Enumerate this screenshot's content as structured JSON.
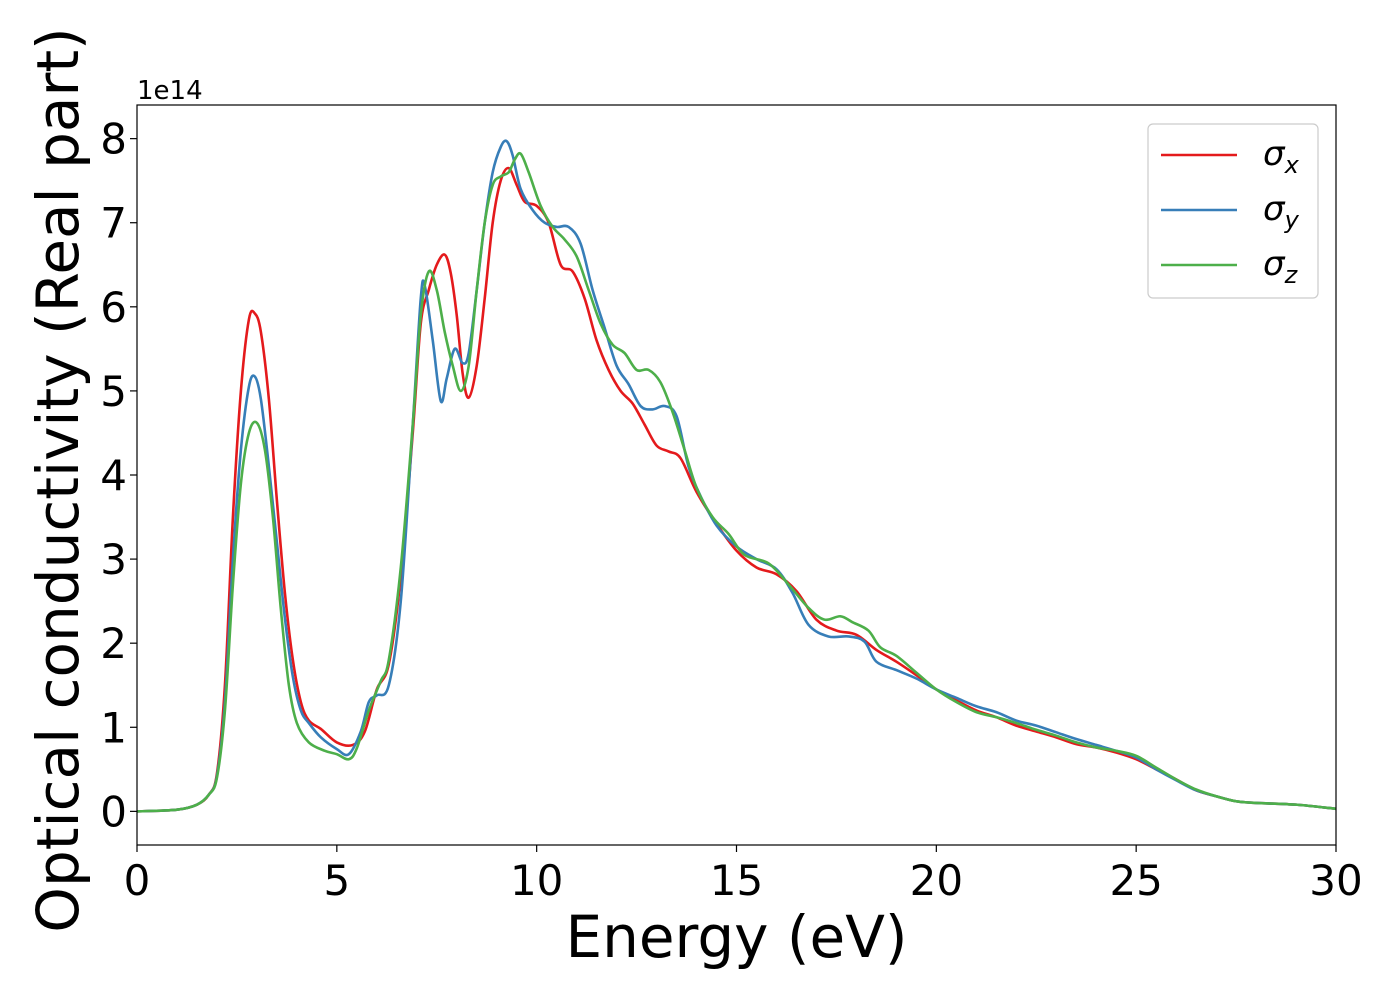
{
  "chart_data": {
    "type": "line",
    "title": "",
    "xlabel": "Energy (eV)",
    "ylabel": "Optical conductivity (Real part)",
    "y_offset_text": "1e14",
    "y_multiplier": 100000000000000.0,
    "xlim": [
      0,
      30
    ],
    "ylim": [
      -0.4,
      8.4
    ],
    "x_ticks": [
      0,
      5,
      10,
      15,
      20,
      25,
      30
    ],
    "x_tick_labels": [
      "0",
      "5",
      "10",
      "15",
      "20",
      "25",
      "30"
    ],
    "y_ticks": [
      0,
      1,
      2,
      3,
      4,
      5,
      6,
      7,
      8
    ],
    "y_tick_labels": [
      "0",
      "1",
      "2",
      "3",
      "4",
      "5",
      "6",
      "7",
      "8"
    ],
    "grid": false,
    "legend_position": "top-right",
    "series": [
      {
        "name": "σx",
        "symbol": "σ",
        "subscript": "x",
        "color": "#e41a1c",
        "points": [
          [
            0,
            0
          ],
          [
            1,
            0.02
          ],
          [
            1.5,
            0.08
          ],
          [
            1.8,
            0.2
          ],
          [
            2.0,
            0.45
          ],
          [
            2.2,
            1.5
          ],
          [
            2.4,
            3.5
          ],
          [
            2.6,
            5.0
          ],
          [
            2.8,
            5.85
          ],
          [
            2.95,
            5.92
          ],
          [
            3.1,
            5.7
          ],
          [
            3.3,
            4.9
          ],
          [
            3.5,
            3.7
          ],
          [
            3.7,
            2.6
          ],
          [
            3.9,
            1.8
          ],
          [
            4.1,
            1.3
          ],
          [
            4.3,
            1.08
          ],
          [
            4.6,
            0.98
          ],
          [
            5.0,
            0.82
          ],
          [
            5.4,
            0.79
          ],
          [
            5.7,
            0.95
          ],
          [
            6.0,
            1.45
          ],
          [
            6.3,
            1.75
          ],
          [
            6.6,
            2.8
          ],
          [
            6.9,
            4.5
          ],
          [
            7.1,
            5.8
          ],
          [
            7.3,
            6.2
          ],
          [
            7.5,
            6.5
          ],
          [
            7.7,
            6.62
          ],
          [
            7.85,
            6.4
          ],
          [
            8.0,
            5.9
          ],
          [
            8.15,
            5.2
          ],
          [
            8.3,
            4.92
          ],
          [
            8.5,
            5.3
          ],
          [
            8.7,
            6.1
          ],
          [
            8.9,
            7.0
          ],
          [
            9.1,
            7.5
          ],
          [
            9.3,
            7.65
          ],
          [
            9.5,
            7.45
          ],
          [
            9.7,
            7.25
          ],
          [
            10.0,
            7.2
          ],
          [
            10.3,
            7.0
          ],
          [
            10.6,
            6.5
          ],
          [
            10.9,
            6.42
          ],
          [
            11.2,
            6.1
          ],
          [
            11.5,
            5.6
          ],
          [
            11.8,
            5.25
          ],
          [
            12.1,
            5.0
          ],
          [
            12.4,
            4.85
          ],
          [
            12.7,
            4.6
          ],
          [
            13.0,
            4.35
          ],
          [
            13.3,
            4.28
          ],
          [
            13.6,
            4.2
          ],
          [
            14.0,
            3.8
          ],
          [
            14.5,
            3.42
          ],
          [
            15.0,
            3.1
          ],
          [
            15.5,
            2.9
          ],
          [
            16.0,
            2.82
          ],
          [
            16.5,
            2.62
          ],
          [
            17.0,
            2.28
          ],
          [
            17.5,
            2.15
          ],
          [
            18.0,
            2.1
          ],
          [
            18.5,
            1.92
          ],
          [
            19.0,
            1.78
          ],
          [
            19.5,
            1.62
          ],
          [
            20.0,
            1.45
          ],
          [
            20.5,
            1.32
          ],
          [
            21.0,
            1.2
          ],
          [
            21.5,
            1.12
          ],
          [
            22.0,
            1.02
          ],
          [
            22.5,
            0.95
          ],
          [
            23.0,
            0.88
          ],
          [
            23.5,
            0.8
          ],
          [
            24.0,
            0.76
          ],
          [
            24.5,
            0.7
          ],
          [
            25.0,
            0.62
          ],
          [
            25.5,
            0.5
          ],
          [
            26.0,
            0.38
          ],
          [
            26.5,
            0.25
          ],
          [
            27.0,
            0.18
          ],
          [
            27.5,
            0.12
          ],
          [
            28.0,
            0.1
          ],
          [
            29.0,
            0.08
          ],
          [
            30.0,
            0.03
          ]
        ]
      },
      {
        "name": "σy",
        "symbol": "σ",
        "subscript": "y",
        "color": "#377eb8",
        "points": [
          [
            0,
            0
          ],
          [
            1,
            0.02
          ],
          [
            1.5,
            0.08
          ],
          [
            1.8,
            0.2
          ],
          [
            2.0,
            0.42
          ],
          [
            2.2,
            1.3
          ],
          [
            2.4,
            3.0
          ],
          [
            2.6,
            4.3
          ],
          [
            2.8,
            5.05
          ],
          [
            2.95,
            5.17
          ],
          [
            3.1,
            4.9
          ],
          [
            3.3,
            4.1
          ],
          [
            3.5,
            3.2
          ],
          [
            3.7,
            2.3
          ],
          [
            3.9,
            1.6
          ],
          [
            4.1,
            1.2
          ],
          [
            4.3,
            1.05
          ],
          [
            4.6,
            0.88
          ],
          [
            5.0,
            0.74
          ],
          [
            5.3,
            0.68
          ],
          [
            5.6,
            0.95
          ],
          [
            5.8,
            1.3
          ],
          [
            6.0,
            1.38
          ],
          [
            6.3,
            1.5
          ],
          [
            6.6,
            2.5
          ],
          [
            6.9,
            4.6
          ],
          [
            7.1,
            6.1
          ],
          [
            7.2,
            6.25
          ],
          [
            7.4,
            5.6
          ],
          [
            7.6,
            4.88
          ],
          [
            7.75,
            5.15
          ],
          [
            7.95,
            5.5
          ],
          [
            8.15,
            5.33
          ],
          [
            8.3,
            5.45
          ],
          [
            8.5,
            6.2
          ],
          [
            8.7,
            7.0
          ],
          [
            8.9,
            7.6
          ],
          [
            9.1,
            7.9
          ],
          [
            9.25,
            7.97
          ],
          [
            9.4,
            7.8
          ],
          [
            9.6,
            7.4
          ],
          [
            9.9,
            7.15
          ],
          [
            10.2,
            7.0
          ],
          [
            10.5,
            6.95
          ],
          [
            10.8,
            6.95
          ],
          [
            11.1,
            6.75
          ],
          [
            11.4,
            6.2
          ],
          [
            11.7,
            5.75
          ],
          [
            12.0,
            5.3
          ],
          [
            12.3,
            5.08
          ],
          [
            12.6,
            4.82
          ],
          [
            12.9,
            4.78
          ],
          [
            13.2,
            4.82
          ],
          [
            13.5,
            4.7
          ],
          [
            13.8,
            4.1
          ],
          [
            14.1,
            3.75
          ],
          [
            14.5,
            3.4
          ],
          [
            15.0,
            3.15
          ],
          [
            15.5,
            3.0
          ],
          [
            16.0,
            2.88
          ],
          [
            16.4,
            2.6
          ],
          [
            16.8,
            2.22
          ],
          [
            17.3,
            2.08
          ],
          [
            17.8,
            2.08
          ],
          [
            18.2,
            2.02
          ],
          [
            18.5,
            1.78
          ],
          [
            19.0,
            1.68
          ],
          [
            19.5,
            1.58
          ],
          [
            20.0,
            1.45
          ],
          [
            20.5,
            1.35
          ],
          [
            21.0,
            1.25
          ],
          [
            21.5,
            1.18
          ],
          [
            22.0,
            1.08
          ],
          [
            22.5,
            1.02
          ],
          [
            23.0,
            0.94
          ],
          [
            23.5,
            0.86
          ],
          [
            24.0,
            0.79
          ],
          [
            24.5,
            0.72
          ],
          [
            25.0,
            0.64
          ],
          [
            25.5,
            0.5
          ],
          [
            26.0,
            0.37
          ],
          [
            26.5,
            0.25
          ],
          [
            27.0,
            0.18
          ],
          [
            27.5,
            0.12
          ],
          [
            28.0,
            0.1
          ],
          [
            29.0,
            0.08
          ],
          [
            30.0,
            0.03
          ]
        ]
      },
      {
        "name": "σz",
        "symbol": "σ",
        "subscript": "z",
        "color": "#4daf4a",
        "points": [
          [
            0,
            0
          ],
          [
            1,
            0.02
          ],
          [
            1.5,
            0.08
          ],
          [
            1.8,
            0.2
          ],
          [
            2.0,
            0.4
          ],
          [
            2.2,
            1.2
          ],
          [
            2.4,
            2.7
          ],
          [
            2.6,
            3.9
          ],
          [
            2.8,
            4.5
          ],
          [
            3.0,
            4.62
          ],
          [
            3.2,
            4.3
          ],
          [
            3.4,
            3.5
          ],
          [
            3.6,
            2.4
          ],
          [
            3.8,
            1.5
          ],
          [
            4.0,
            1.05
          ],
          [
            4.3,
            0.82
          ],
          [
            4.7,
            0.72
          ],
          [
            5.0,
            0.68
          ],
          [
            5.3,
            0.62
          ],
          [
            5.5,
            0.75
          ],
          [
            5.8,
            1.2
          ],
          [
            6.1,
            1.55
          ],
          [
            6.3,
            1.8
          ],
          [
            6.6,
            2.9
          ],
          [
            6.9,
            4.6
          ],
          [
            7.1,
            5.9
          ],
          [
            7.3,
            6.42
          ],
          [
            7.5,
            6.2
          ],
          [
            7.7,
            5.7
          ],
          [
            7.9,
            5.3
          ],
          [
            8.1,
            5.0
          ],
          [
            8.3,
            5.3
          ],
          [
            8.5,
            6.2
          ],
          [
            8.7,
            7.0
          ],
          [
            8.9,
            7.45
          ],
          [
            9.1,
            7.55
          ],
          [
            9.3,
            7.6
          ],
          [
            9.45,
            7.75
          ],
          [
            9.6,
            7.82
          ],
          [
            9.8,
            7.6
          ],
          [
            10.1,
            7.2
          ],
          [
            10.4,
            6.95
          ],
          [
            10.7,
            6.8
          ],
          [
            11.0,
            6.6
          ],
          [
            11.3,
            6.2
          ],
          [
            11.6,
            5.8
          ],
          [
            11.9,
            5.55
          ],
          [
            12.2,
            5.45
          ],
          [
            12.5,
            5.25
          ],
          [
            12.8,
            5.25
          ],
          [
            13.1,
            5.1
          ],
          [
            13.4,
            4.75
          ],
          [
            13.7,
            4.3
          ],
          [
            14.0,
            3.85
          ],
          [
            14.4,
            3.5
          ],
          [
            14.8,
            3.3
          ],
          [
            15.2,
            3.05
          ],
          [
            15.8,
            2.95
          ],
          [
            16.3,
            2.7
          ],
          [
            16.8,
            2.42
          ],
          [
            17.2,
            2.28
          ],
          [
            17.6,
            2.32
          ],
          [
            17.9,
            2.25
          ],
          [
            18.3,
            2.15
          ],
          [
            18.6,
            1.95
          ],
          [
            19.0,
            1.85
          ],
          [
            19.5,
            1.65
          ],
          [
            20.0,
            1.45
          ],
          [
            20.5,
            1.3
          ],
          [
            21.0,
            1.18
          ],
          [
            21.5,
            1.12
          ],
          [
            22.0,
            1.05
          ],
          [
            22.5,
            0.97
          ],
          [
            23.0,
            0.9
          ],
          [
            23.5,
            0.82
          ],
          [
            24.0,
            0.76
          ],
          [
            24.5,
            0.72
          ],
          [
            25.0,
            0.66
          ],
          [
            25.5,
            0.52
          ],
          [
            26.0,
            0.38
          ],
          [
            26.5,
            0.26
          ],
          [
            27.0,
            0.18
          ],
          [
            27.5,
            0.12
          ],
          [
            28.0,
            0.1
          ],
          [
            29.0,
            0.08
          ],
          [
            30.0,
            0.03
          ]
        ]
      }
    ]
  }
}
